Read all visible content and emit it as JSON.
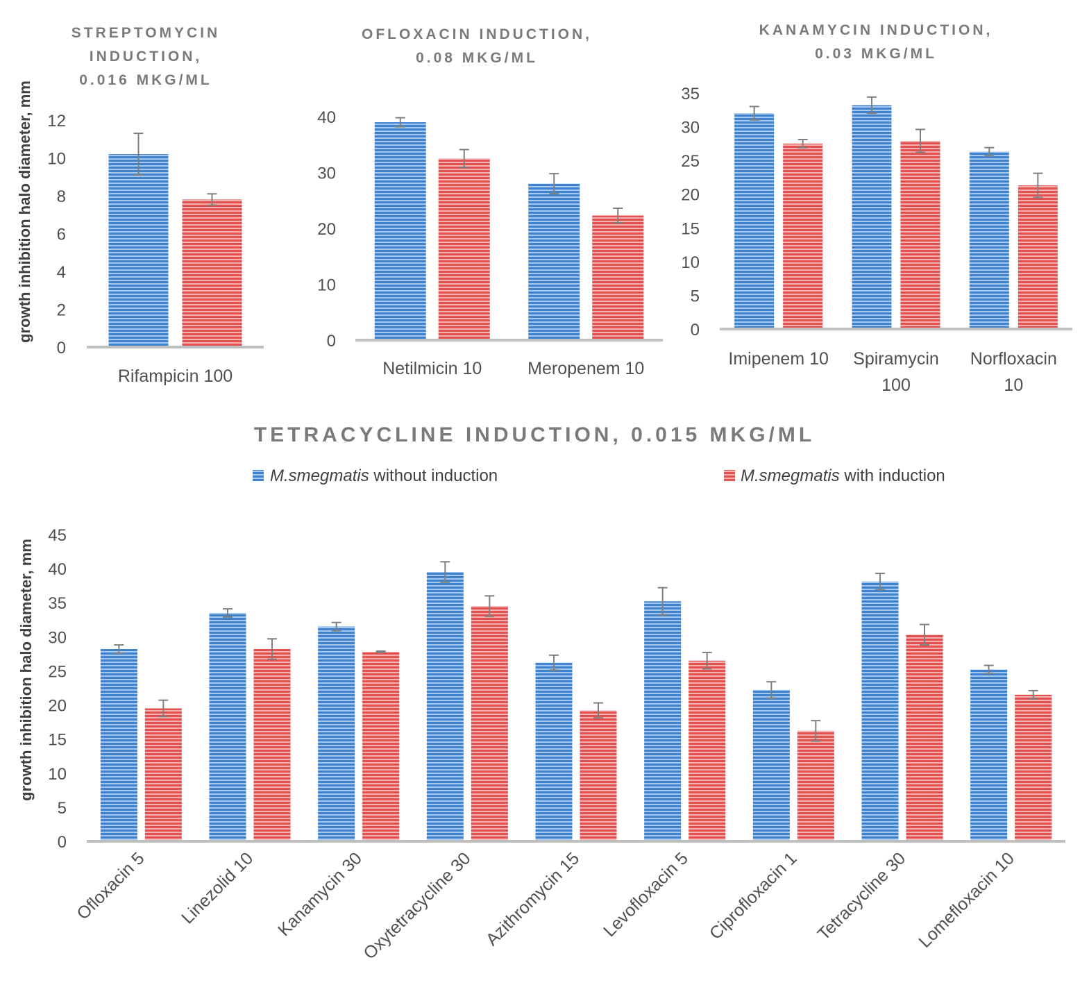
{
  "colors": {
    "without": "#4a90d9",
    "with": "#e05c5c",
    "axis": "#bfbfbf",
    "errorbar": "#7f7f7f"
  },
  "legend": {
    "without": {
      "species": "M.smegmatis",
      "label": " without induction"
    },
    "with": {
      "species": "M.smegmatis",
      "label": " with induction"
    }
  },
  "ylabel": "growth inhibition halo diameter, mm",
  "chart_data": [
    {
      "type": "bar",
      "title": [
        "STREPTOMYCIN",
        "INDUCTION,",
        "0.016 MKG/ML"
      ],
      "ylabel": "growth inhibition halo diameter, mm",
      "ylim": [
        0,
        12
      ],
      "yticks": [
        0,
        2,
        4,
        6,
        8,
        10,
        12
      ],
      "categories": [
        [
          "Rifampicin 100"
        ]
      ],
      "series": [
        {
          "name": "M.smegmatis without induction",
          "values": [
            10.2
          ],
          "errors": [
            1.1
          ]
        },
        {
          "name": "M.smegmatis with induction",
          "values": [
            7.8
          ],
          "errors": [
            0.3
          ]
        }
      ]
    },
    {
      "type": "bar",
      "title": [
        "OFLOXACIN INDUCTION,",
        "0.08 MKG/ML"
      ],
      "ylim": [
        0,
        40
      ],
      "yticks": [
        0,
        10,
        20,
        30,
        40
      ],
      "categories": [
        [
          "Netilmicin 10"
        ],
        [
          "Meropenem 10"
        ]
      ],
      "series": [
        {
          "name": "M.smegmatis without induction",
          "values": [
            39.0,
            28.0
          ],
          "errors": [
            0.8,
            1.8
          ]
        },
        {
          "name": "M.smegmatis with induction",
          "values": [
            32.5,
            22.3
          ],
          "errors": [
            1.6,
            1.3
          ]
        }
      ]
    },
    {
      "type": "bar",
      "title": [
        "KANAMYCIN INDUCTION,",
        "0.03 MKG/ML"
      ],
      "ylim": [
        0,
        35
      ],
      "yticks": [
        0,
        5,
        10,
        15,
        20,
        25,
        30,
        35
      ],
      "categories": [
        [
          "Imipenem 10"
        ],
        [
          "Spiramycin",
          "100"
        ],
        [
          "Norfloxacin",
          "10"
        ]
      ],
      "series": [
        {
          "name": "M.smegmatis without induction",
          "values": [
            32.0,
            33.2,
            26.3
          ],
          "errors": [
            1.0,
            1.2,
            0.6
          ]
        },
        {
          "name": "M.smegmatis with induction",
          "values": [
            27.5,
            27.9,
            21.3
          ],
          "errors": [
            0.6,
            1.7,
            1.8
          ]
        }
      ]
    },
    {
      "type": "bar",
      "title": [
        "TETRACYCLINE INDUCTION, 0.015 MKG/ML"
      ],
      "ylabel": "growth inhibition halo diameter, mm",
      "ylim": [
        0,
        45
      ],
      "yticks": [
        0,
        5,
        10,
        15,
        20,
        25,
        30,
        35,
        40,
        45
      ],
      "legend_position": "top",
      "categories": [
        [
          "Ofloxacin 5"
        ],
        [
          "Linezolid 10"
        ],
        [
          "Kanamycin 30"
        ],
        [
          "Oxytetracycline 30"
        ],
        [
          "Azithromycin 15"
        ],
        [
          "Levofloxacin 5"
        ],
        [
          "Ciprofloxacin 1"
        ],
        [
          "Tetracycline 30"
        ],
        [
          "Lomefloxacin 10"
        ]
      ],
      "series": [
        {
          "name": "M.smegmatis without induction",
          "values": [
            28.2,
            33.5,
            31.5,
            39.5,
            26.2,
            35.2,
            22.2,
            38.1,
            25.2
          ],
          "errors": [
            0.6,
            0.6,
            0.6,
            1.5,
            1.1,
            2.0,
            1.2,
            1.2,
            0.6
          ]
        },
        {
          "name": "M.smegmatis with induction",
          "values": [
            19.5,
            28.2,
            27.8,
            34.5,
            19.2,
            26.5,
            16.2,
            30.3,
            21.5
          ],
          "errors": [
            1.2,
            1.5,
            0.1,
            1.5,
            1.1,
            1.2,
            1.5,
            1.5,
            0.6
          ]
        }
      ]
    }
  ]
}
